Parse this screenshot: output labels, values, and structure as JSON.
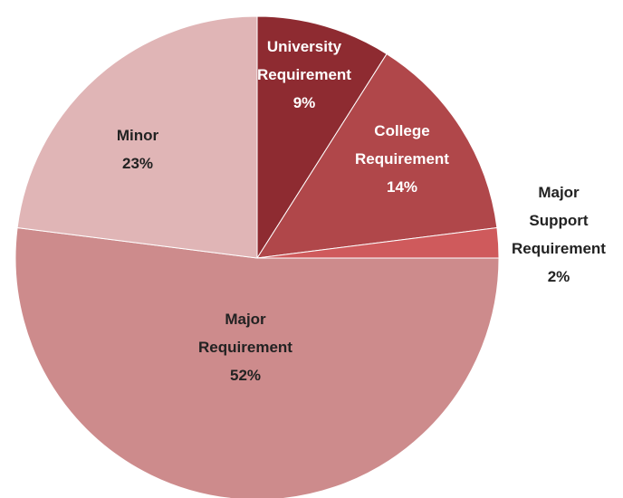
{
  "chart_data": {
    "type": "pie",
    "title": "",
    "slices": [
      {
        "name": "University Requirement",
        "label_lines": [
          "University",
          "Requirement"
        ],
        "percent_label": "9%",
        "value": 9,
        "color": "#8e2b31",
        "label_color": "#ffffff",
        "label_position": "inside"
      },
      {
        "name": "College Requirement",
        "label_lines": [
          "College",
          "Requirement"
        ],
        "percent_label": "14%",
        "value": 14,
        "color": "#b0474a",
        "label_color": "#ffffff",
        "label_position": "inside"
      },
      {
        "name": "Major Support Requirement",
        "label_lines": [
          "Major",
          "Support",
          "Requirement"
        ],
        "percent_label": "2%",
        "value": 2,
        "color": "#cf5a5c",
        "label_color": "#222222",
        "label_position": "outside"
      },
      {
        "name": "Major Requirement",
        "label_lines": [
          "Major",
          "Requirement"
        ],
        "percent_label": "52%",
        "value": 52,
        "color": "#cd8b8c",
        "label_color": "#222222",
        "label_position": "inside"
      },
      {
        "name": "Minor",
        "label_lines": [
          "Minor"
        ],
        "percent_label": "23%",
        "value": 23,
        "color": "#e0b5b6",
        "label_color": "#222222",
        "label_position": "inside"
      }
    ],
    "start_angle_deg": -90,
    "direction": "clockwise",
    "legend": "none"
  }
}
